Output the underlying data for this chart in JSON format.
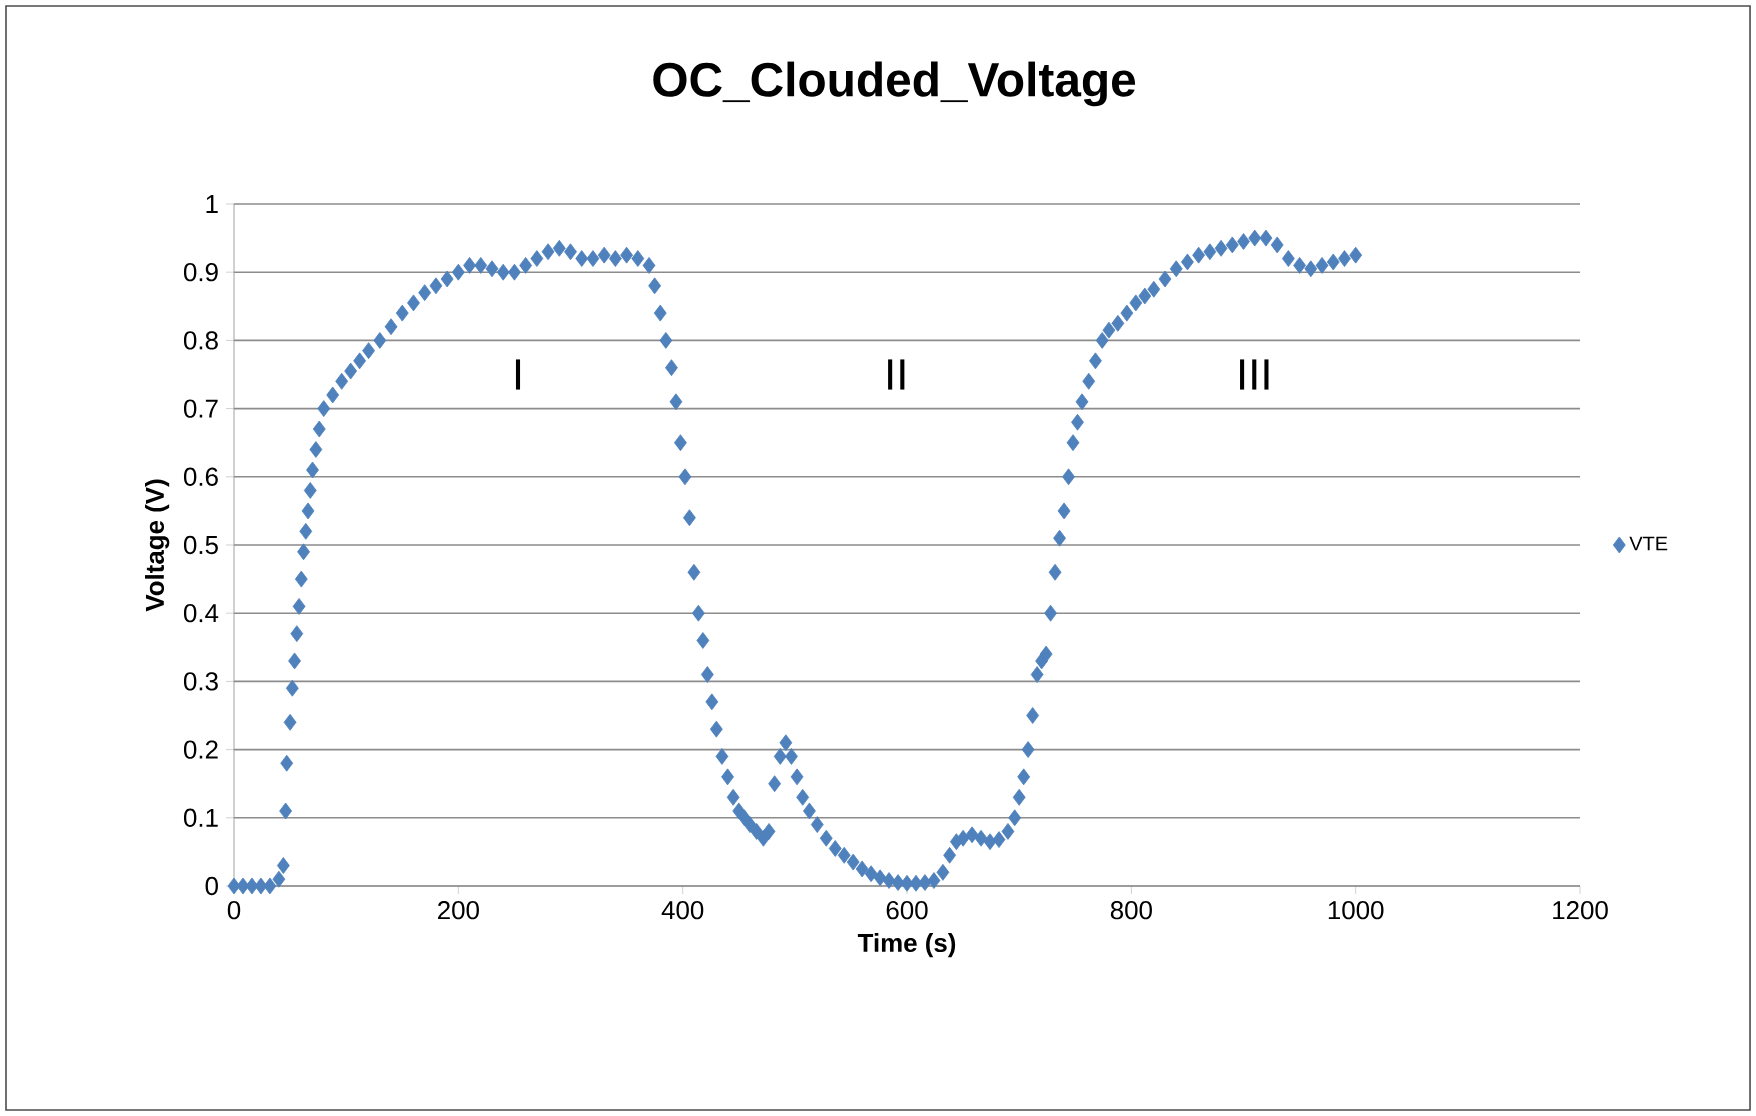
{
  "chart_data": {
    "type": "scatter",
    "title": "OC_Clouded_Voltage",
    "xlabel": "Time (s)",
    "ylabel": "Voltage (V)",
    "x": [
      0,
      8,
      16,
      24,
      32,
      40,
      44,
      46,
      47,
      50,
      52,
      54,
      56,
      58,
      60,
      62,
      64,
      66,
      68,
      70,
      73,
      76,
      80,
      88,
      96,
      104,
      112,
      120,
      130,
      140,
      150,
      160,
      170,
      180,
      190,
      200,
      210,
      220,
      230,
      240,
      250,
      260,
      270,
      280,
      290,
      300,
      310,
      320,
      330,
      340,
      350,
      360,
      370,
      375,
      380,
      385,
      390,
      394,
      398,
      402,
      406,
      410,
      414,
      418,
      422,
      426,
      430,
      435,
      440,
      445,
      450,
      455,
      460,
      466,
      472,
      477,
      482,
      487,
      492,
      497,
      502,
      507,
      513,
      520,
      528,
      536,
      544,
      552,
      560,
      568,
      576,
      584,
      592,
      600,
      608,
      616,
      624,
      632,
      638,
      644,
      650,
      658,
      666,
      674,
      682,
      690,
      696,
      700,
      704,
      708,
      712,
      716,
      720,
      724,
      728,
      732,
      736,
      740,
      744,
      748,
      752,
      756,
      762,
      768,
      774,
      780,
      788,
      796,
      804,
      812,
      820,
      830,
      840,
      850,
      860,
      870,
      880,
      890,
      900,
      910,
      920,
      930,
      940,
      950,
      960,
      970,
      980,
      990,
      1000
    ],
    "series": [
      {
        "name": "VTE",
        "color": "#4f81bd",
        "values": [
          0,
          0,
          0,
          0,
          0,
          0.01,
          0.03,
          0.11,
          0.18,
          0.24,
          0.29,
          0.33,
          0.37,
          0.41,
          0.45,
          0.49,
          0.52,
          0.55,
          0.58,
          0.61,
          0.64,
          0.67,
          0.7,
          0.72,
          0.74,
          0.755,
          0.77,
          0.785,
          0.8,
          0.82,
          0.84,
          0.855,
          0.87,
          0.88,
          0.89,
          0.9,
          0.91,
          0.91,
          0.905,
          0.9,
          0.9,
          0.91,
          0.92,
          0.93,
          0.935,
          0.93,
          0.92,
          0.92,
          0.925,
          0.92,
          0.925,
          0.92,
          0.91,
          0.88,
          0.84,
          0.8,
          0.76,
          0.71,
          0.65,
          0.6,
          0.54,
          0.46,
          0.4,
          0.36,
          0.31,
          0.27,
          0.23,
          0.19,
          0.16,
          0.13,
          0.11,
          0.1,
          0.09,
          0.08,
          0.07,
          0.08,
          0.15,
          0.19,
          0.21,
          0.19,
          0.16,
          0.13,
          0.11,
          0.09,
          0.07,
          0.055,
          0.045,
          0.035,
          0.025,
          0.018,
          0.012,
          0.008,
          0.005,
          0.004,
          0.004,
          0.005,
          0.008,
          0.02,
          0.045,
          0.065,
          0.07,
          0.075,
          0.07,
          0.065,
          0.068,
          0.08,
          0.1,
          0.13,
          0.16,
          0.2,
          0.25,
          0.31,
          0.33,
          0.34,
          0.4,
          0.46,
          0.51,
          0.55,
          0.6,
          0.65,
          0.68,
          0.71,
          0.74,
          0.77,
          0.8,
          0.815,
          0.825,
          0.84,
          0.855,
          0.865,
          0.875,
          0.89,
          0.905,
          0.915,
          0.925,
          0.93,
          0.935,
          0.94,
          0.945,
          0.95,
          0.95,
          0.94,
          0.92,
          0.91,
          0.905,
          0.91,
          0.915,
          0.92,
          0.925
        ]
      }
    ],
    "xlim": [
      0,
      1200
    ],
    "ylim": [
      0,
      1
    ],
    "xticks": [
      0,
      200,
      400,
      600,
      800,
      1000,
      1200
    ],
    "yticks": [
      0,
      0.1,
      0.2,
      0.3,
      0.4,
      0.5,
      0.6,
      0.7,
      0.8,
      0.9,
      1
    ],
    "grid": "y",
    "legend": "right",
    "marker": "diamond",
    "annotations": [
      "I",
      "II",
      "III"
    ]
  }
}
